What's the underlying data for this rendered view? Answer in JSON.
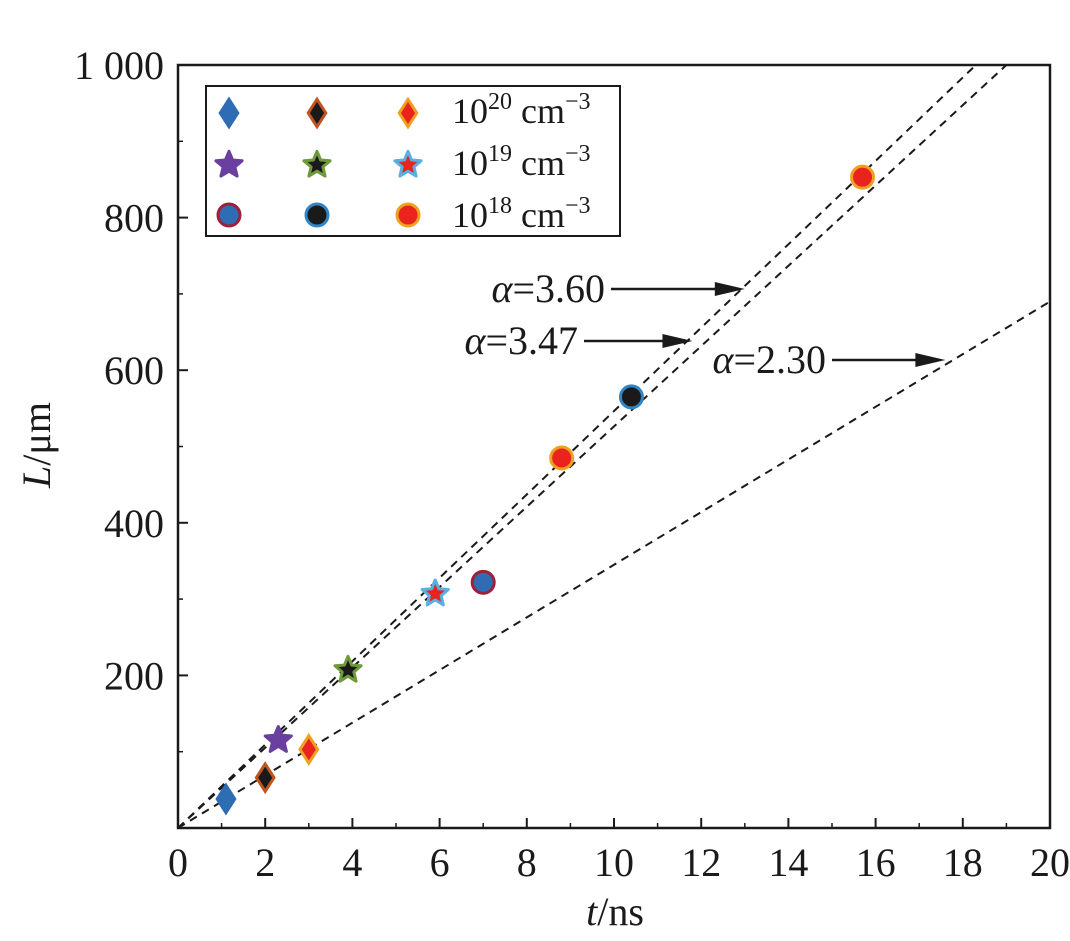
{
  "chart_data": {
    "type": "scatter",
    "xlabel": {
      "italic": "t",
      "rest": "/ns"
    },
    "ylabel": {
      "italic": "L",
      "rest": "/μm"
    },
    "xlim": [
      0,
      20
    ],
    "ylim": [
      0,
      1000
    ],
    "x_ticks": [
      0,
      2,
      4,
      6,
      8,
      10,
      12,
      14,
      16,
      18,
      20
    ],
    "x_tick_labels": [
      "0",
      "2",
      "4",
      "6",
      "8",
      "10",
      "12",
      "14",
      "16",
      "18",
      "20"
    ],
    "y_ticks": [
      200,
      400,
      600,
      800,
      1000
    ],
    "y_tick_labels": [
      "200",
      "400",
      "600",
      "800",
      "1 000"
    ],
    "grid": false,
    "legend_position": "top-left",
    "legend_rows": [
      {
        "base": "10",
        "exp": "20",
        "unit": " cm",
        "unit_exp": "−3"
      },
      {
        "base": "10",
        "exp": "19",
        "unit": " cm",
        "unit_exp": "−3"
      },
      {
        "base": "10",
        "exp": "18",
        "unit": " cm",
        "unit_exp": "−3"
      }
    ],
    "series": [
      {
        "shape": "diamond",
        "fill": "#2e6db4",
        "stroke": "#2e6db4",
        "x": [
          1.1
        ],
        "y": [
          38
        ]
      },
      {
        "shape": "diamond",
        "fill": "#1a1a1a",
        "stroke": "#c0541f",
        "x": [
          2.0
        ],
        "y": [
          66
        ]
      },
      {
        "shape": "diamond",
        "fill": "#e8241c",
        "stroke": "#f0a020",
        "x": [
          3.0
        ],
        "y": [
          103
        ]
      },
      {
        "shape": "star",
        "fill": "#6a3fa0",
        "stroke": "#6a3fa0",
        "x": [
          2.3
        ],
        "y": [
          115
        ]
      },
      {
        "shape": "star",
        "fill": "#1a1a1a",
        "stroke": "#6f9a3a",
        "x": [
          3.9
        ],
        "y": [
          207
        ]
      },
      {
        "shape": "star",
        "fill": "#e8241c",
        "stroke": "#5aaee0",
        "x": [
          5.9
        ],
        "y": [
          307
        ]
      },
      {
        "shape": "circle",
        "fill": "#2e6db4",
        "stroke": "#a0203a",
        "x": [
          7.0
        ],
        "y": [
          322
        ]
      },
      {
        "shape": "circle",
        "fill": "#1a1a1a",
        "stroke": "#2e86c8",
        "x": [
          10.4
        ],
        "y": [
          565
        ]
      },
      {
        "shape": "circle",
        "fill": "#e8241c",
        "stroke": "#f0a020",
        "x": [
          8.8,
          15.7
        ],
        "y": [
          485,
          853
        ]
      }
    ],
    "fit_lines": [
      {
        "label": "α=3.60",
        "x": [
          0,
          18.3
        ],
        "y": [
          0,
          1000
        ],
        "annotation_at": [
          13.0,
          700
        ]
      },
      {
        "label": "α=3.47",
        "x": [
          0,
          19.0
        ],
        "y": [
          0,
          1000
        ],
        "annotation_at": [
          11.8,
          645
        ]
      },
      {
        "label": "α=2.30",
        "x": [
          0,
          20
        ],
        "y": [
          0,
          690
        ],
        "annotation_at": [
          17.6,
          612
        ]
      }
    ]
  }
}
